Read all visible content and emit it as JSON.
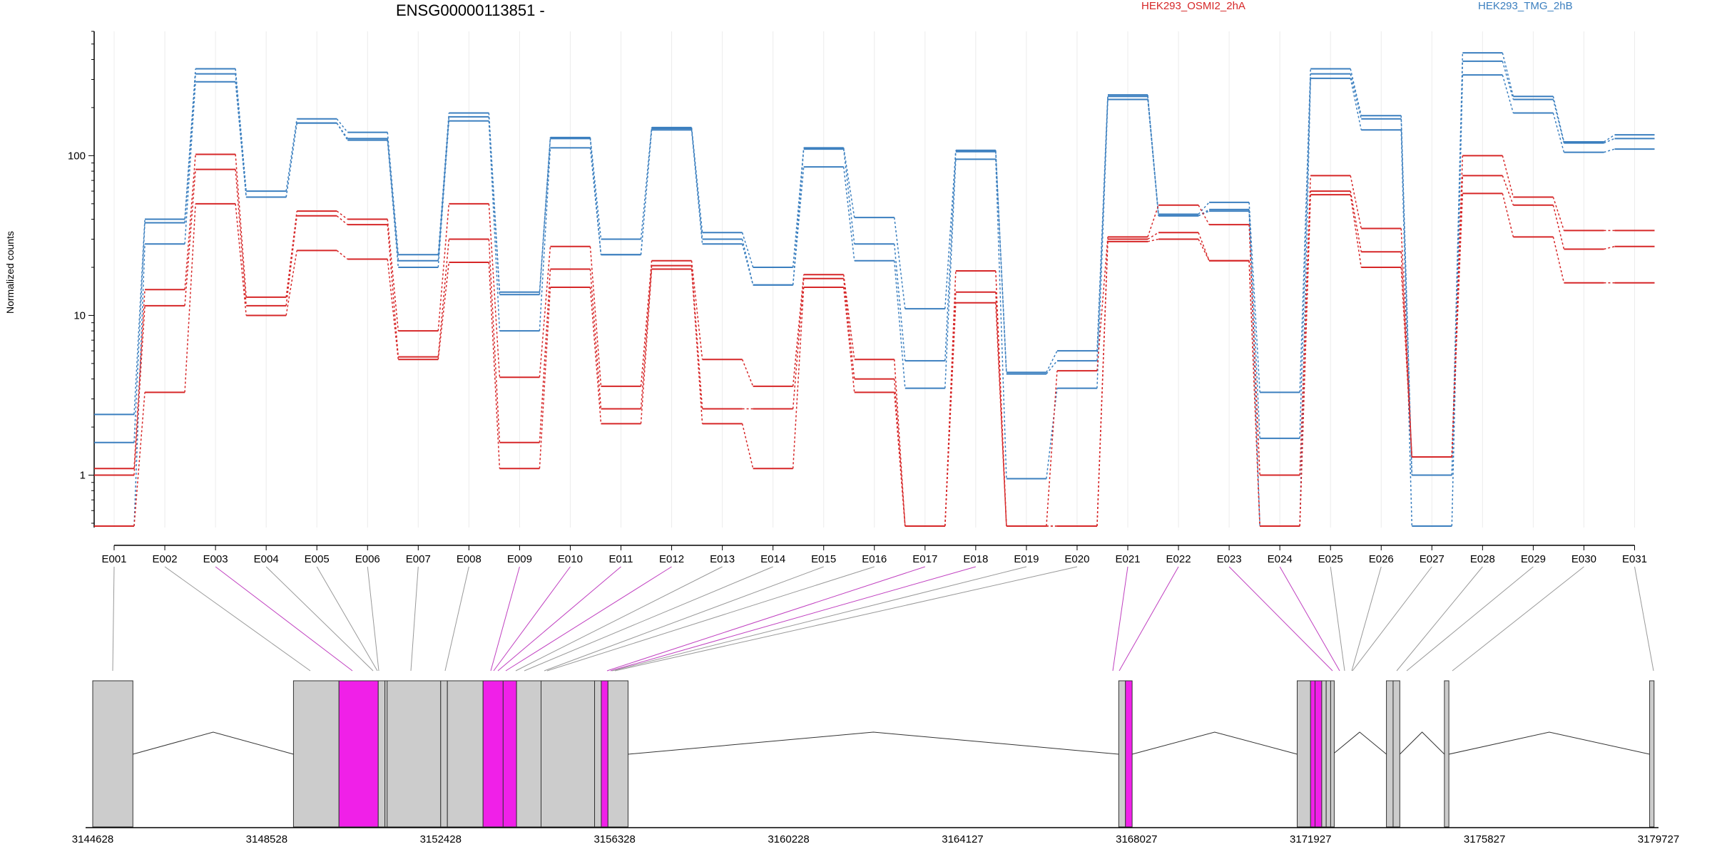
{
  "chart_data": {
    "type": "line",
    "title": "ENSG00000113851 -",
    "ylabel": "Normalized counts",
    "yscale": "log",
    "ylim": [
      0.47,
      600
    ],
    "yticks": [
      1,
      10,
      100
    ],
    "legend": [
      {
        "name": "HEK293_OSMI2_2hA",
        "color": "#d62728"
      },
      {
        "name": "HEK293_TMG_2hB",
        "color": "#3b7fbf"
      }
    ],
    "exons": [
      "E001",
      "E002",
      "E003",
      "E004",
      "E005",
      "E006",
      "E007",
      "E008",
      "E009",
      "E010",
      "E011",
      "E012",
      "E013",
      "E014",
      "E015",
      "E016",
      "E017",
      "E018",
      "E019",
      "E020",
      "E021",
      "E022",
      "E023",
      "E024",
      "E025",
      "E026",
      "E027",
      "E028",
      "E029",
      "E030",
      "E031"
    ],
    "series": [
      {
        "name": "HEK293_TMG_2hB",
        "color": "#3b7fbf",
        "values": [
          2.4,
          40,
          350,
          60,
          170,
          140,
          24,
          185,
          14,
          130,
          30,
          150,
          33,
          20,
          112,
          41,
          11,
          108,
          4.4,
          6,
          240,
          43,
          51,
          3.3,
          350,
          178,
          1.0,
          440,
          235,
          122,
          135
        ]
      },
      {
        "name": "HEK293_TMG_2hB",
        "color": "#3b7fbf",
        "values": [
          1.6,
          38,
          325,
          55,
          160,
          128,
          22,
          175,
          13.5,
          128,
          24,
          148,
          30,
          15.5,
          110,
          28,
          5.2,
          106,
          4.3,
          5.2,
          235,
          42,
          46,
          1.7,
          325,
          170,
          1.0,
          390,
          225,
          120,
          128
        ]
      },
      {
        "name": "HEK293_TMG_2hB",
        "color": "#3b7fbf",
        "values": [
          0.48,
          28,
          290,
          55,
          160,
          125,
          20,
          165,
          8,
          112,
          24,
          145,
          28,
          15.5,
          85,
          22,
          3.5,
          95,
          0.95,
          3.5,
          225,
          42,
          45,
          0.48,
          305,
          145,
          0.48,
          320,
          185,
          105,
          110
        ]
      },
      {
        "name": "HEK293_OSMI2_2hA",
        "color": "#d62728",
        "values": [
          1.1,
          14.5,
          102,
          13,
          45,
          40,
          8,
          50,
          4.1,
          27,
          3.6,
          22,
          5.3,
          3.6,
          18,
          5.3,
          0.48,
          19,
          0.48,
          4.5,
          31,
          49,
          37,
          1.0,
          75,
          35,
          1.3,
          100,
          55,
          34,
          34
        ]
      },
      {
        "name": "HEK293_OSMI2_2hA",
        "color": "#d62728",
        "values": [
          1.0,
          11.5,
          82,
          11.5,
          42,
          37,
          5.5,
          30,
          1.6,
          19.5,
          2.6,
          20.5,
          2.6,
          2.6,
          17,
          4.0,
          0.48,
          14,
          0.48,
          0.48,
          30,
          33,
          22,
          0.48,
          60,
          25,
          1.3,
          75,
          49,
          26,
          27
        ]
      },
      {
        "name": "HEK293_OSMI2_2hA",
        "color": "#d62728",
        "values": [
          0.48,
          3.3,
          50,
          10,
          25.5,
          22.5,
          5.3,
          21.5,
          1.1,
          15,
          2.1,
          19.5,
          2.1,
          1.1,
          15,
          3.3,
          0.48,
          12,
          0.48,
          0.48,
          29,
          30,
          22,
          0.48,
          57,
          20,
          1.3,
          58,
          31,
          16,
          16
        ]
      }
    ],
    "genome_axis": {
      "ticks": [
        "3144628",
        "3148528",
        "3152428",
        "3156328",
        "3160228",
        "3164127",
        "3168027",
        "3171927",
        "3175827",
        "3179727"
      ]
    },
    "highlight_color": "#f020e8",
    "highlighted_exons": [
      "E003",
      "E009",
      "E010",
      "E011",
      "E012",
      "E017",
      "E018",
      "E021",
      "E022",
      "E023",
      "E024"
    ]
  }
}
